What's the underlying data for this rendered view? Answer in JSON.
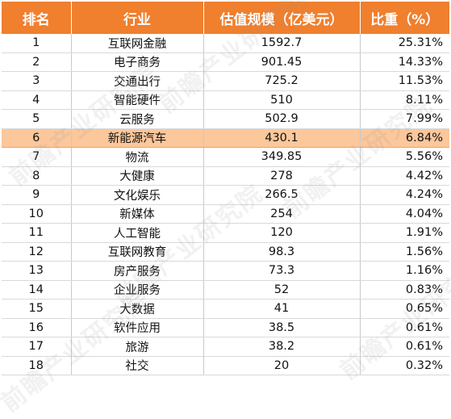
{
  "table": {
    "headers": [
      "排名",
      "行业",
      "估值规模（亿美元）",
      "比重（%）"
    ],
    "highlight_row": 6,
    "rows": [
      [
        "1",
        "互联网金融",
        "1592.7",
        "25.31%"
      ],
      [
        "2",
        "电子商务",
        "901.45",
        "14.33%"
      ],
      [
        "3",
        "交通出行",
        "725.2",
        "11.53%"
      ],
      [
        "4",
        "智能硬件",
        "510",
        "8.11%"
      ],
      [
        "5",
        "云服务",
        "502.9",
        "7.99%"
      ],
      [
        "6",
        "新能源汽车",
        "430.1",
        "6.84%"
      ],
      [
        "7",
        "物流",
        "349.85",
        "5.56%"
      ],
      [
        "8",
        "大健康",
        "278",
        "4.42%"
      ],
      [
        "9",
        "文化娱乐",
        "266.5",
        "4.24%"
      ],
      [
        "10",
        "新媒体",
        "254",
        "4.04%"
      ],
      [
        "11",
        "人工智能",
        "120",
        "1.91%"
      ],
      [
        "12",
        "互联网教育",
        "98.3",
        "1.56%"
      ],
      [
        "13",
        "房产服务",
        "73.3",
        "1.16%"
      ],
      [
        "14",
        "企业服务",
        "52",
        "0.83%"
      ],
      [
        "15",
        "大数据",
        "41",
        "0.65%"
      ],
      [
        "16",
        "软件应用",
        "38.5",
        "0.61%"
      ],
      [
        "17",
        "旅游",
        "38.2",
        "0.61%"
      ],
      [
        "18",
        "社交",
        "20",
        "0.32%"
      ]
    ]
  },
  "colors": {
    "header_bg": "#f07f2e",
    "highlight_bg": "#fbc79b"
  }
}
